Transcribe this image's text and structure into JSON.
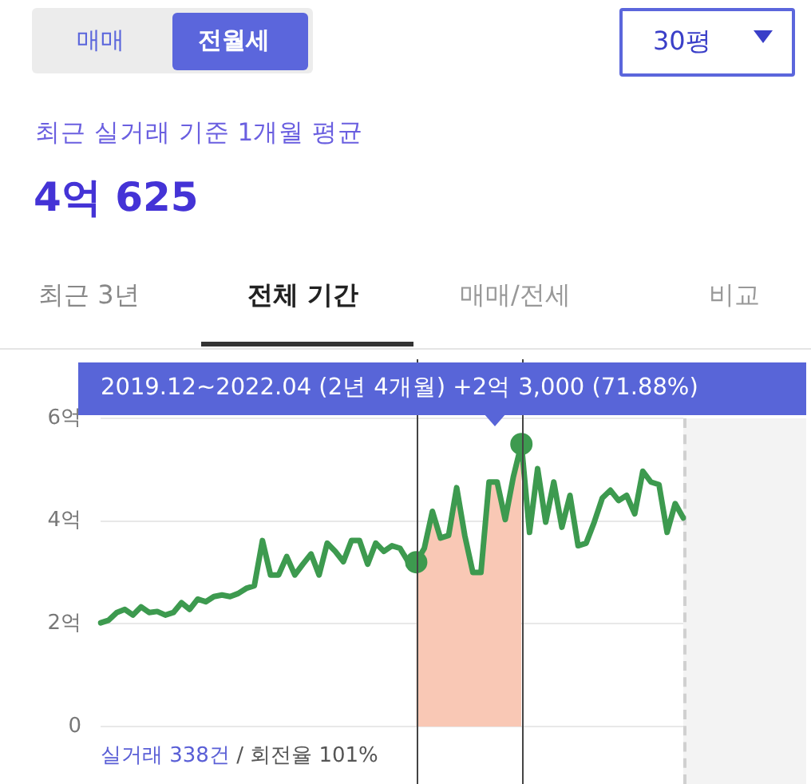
{
  "chart_data": {
    "type": "line",
    "title": "최근 실거래 기준 1개월 평균",
    "subtitle": "4억 625",
    "annotations": [
      "매매",
      "전월세",
      "30평",
      "최근 3년",
      "전체 기간",
      "매매/전세",
      "비교",
      "2019.12~2022.04 (2년 4개월)  +2억 3,000 (71.88%)",
      "실거래 338건",
      "/ 회전율 101%"
    ],
    "categories": [
      null,
      null,
      null,
      null,
      null,
      null,
      null,
      null,
      null,
      null,
      null,
      null,
      null,
      null,
      null,
      null,
      null,
      null,
      null,
      null,
      null,
      null,
      null,
      null,
      null,
      null,
      null,
      null,
      null,
      null,
      null,
      null,
      null,
      null,
      null,
      null,
      null,
      null,
      null,
      null,
      null,
      null,
      null,
      null,
      null,
      null,
      null,
      null,
      null,
      null,
      null,
      null,
      null,
      null,
      null,
      null,
      null,
      null,
      null,
      null,
      null,
      null,
      null,
      null,
      null,
      null,
      null,
      null,
      null,
      null,
      null,
      null,
      null
    ],
    "series": [
      {
        "type": "area",
        "color": "#f9c8b5",
        "values": [
          null,
          null,
          null,
          null,
          null,
          null,
          null,
          null,
          null,
          null,
          null,
          null,
          null,
          null,
          null,
          null,
          null,
          null,
          null,
          null,
          null,
          null,
          null,
          null,
          null,
          null,
          null,
          null,
          null,
          null,
          null,
          null,
          null,
          null,
          null,
          null,
          null,
          null,
          null,
          3.2,
          3.47,
          4.19,
          3.67,
          3.72,
          4.65,
          3.72,
          3.0,
          3.0,
          4.76,
          4.76,
          4.03,
          4.86,
          5.5,
          null,
          null,
          null,
          null,
          null,
          null,
          null,
          null,
          null,
          null,
          null,
          null,
          null,
          null,
          null,
          null,
          null,
          null,
          null,
          null
        ]
      },
      {
        "color": "#3d9a4f",
        "values": [
          2.02,
          2.07,
          2.22,
          2.28,
          2.17,
          2.33,
          2.22,
          2.24,
          2.17,
          2.22,
          2.41,
          2.28,
          2.48,
          2.43,
          2.53,
          2.56,
          2.53,
          2.59,
          2.69,
          2.74,
          3.62,
          2.95,
          2.95,
          3.31,
          2.95,
          3.16,
          3.36,
          2.95,
          3.57,
          3.41,
          3.21,
          3.62,
          3.62,
          3.16,
          3.57,
          3.41,
          3.52,
          3.47,
          3.21,
          3.2,
          3.47,
          4.19,
          3.67,
          3.72,
          4.65,
          3.72,
          3.0,
          3.0,
          4.76,
          4.76,
          4.03,
          4.86,
          5.5,
          3.78,
          5.02,
          3.98,
          4.76,
          3.88,
          4.5,
          3.52,
          3.57,
          3.98,
          4.45,
          4.6,
          4.4,
          4.5,
          4.14,
          4.97,
          4.76,
          4.71,
          3.78,
          4.34,
          4.06
        ]
      },
      {
        "type": "scatter",
        "color": "#3d9a4f",
        "marker": "circle",
        "values": [
          null,
          null,
          null,
          null,
          null,
          null,
          null,
          null,
          null,
          null,
          null,
          null,
          null,
          null,
          null,
          null,
          null,
          null,
          null,
          null,
          null,
          null,
          null,
          null,
          null,
          null,
          null,
          null,
          null,
          null,
          null,
          null,
          null,
          null,
          null,
          null,
          null,
          null,
          null,
          3.2,
          null,
          null,
          null,
          null,
          null,
          null,
          null,
          null,
          null,
          null,
          null,
          null,
          5.5,
          null,
          null,
          null,
          null,
          null,
          null,
          null,
          null,
          null,
          null,
          null,
          null,
          null,
          null,
          null,
          null,
          null,
          null,
          null,
          null
        ]
      }
    ],
    "ylim": [
      0,
      6
    ],
    "yticks": [
      0,
      {
        "value": 2,
        "label": "2억"
      },
      {
        "value": 4,
        "label": "4억"
      },
      {
        "value": 6,
        "label": "6억"
      }
    ],
    "tick_labels": "y",
    "grid": "y",
    "legend": false
  }
}
